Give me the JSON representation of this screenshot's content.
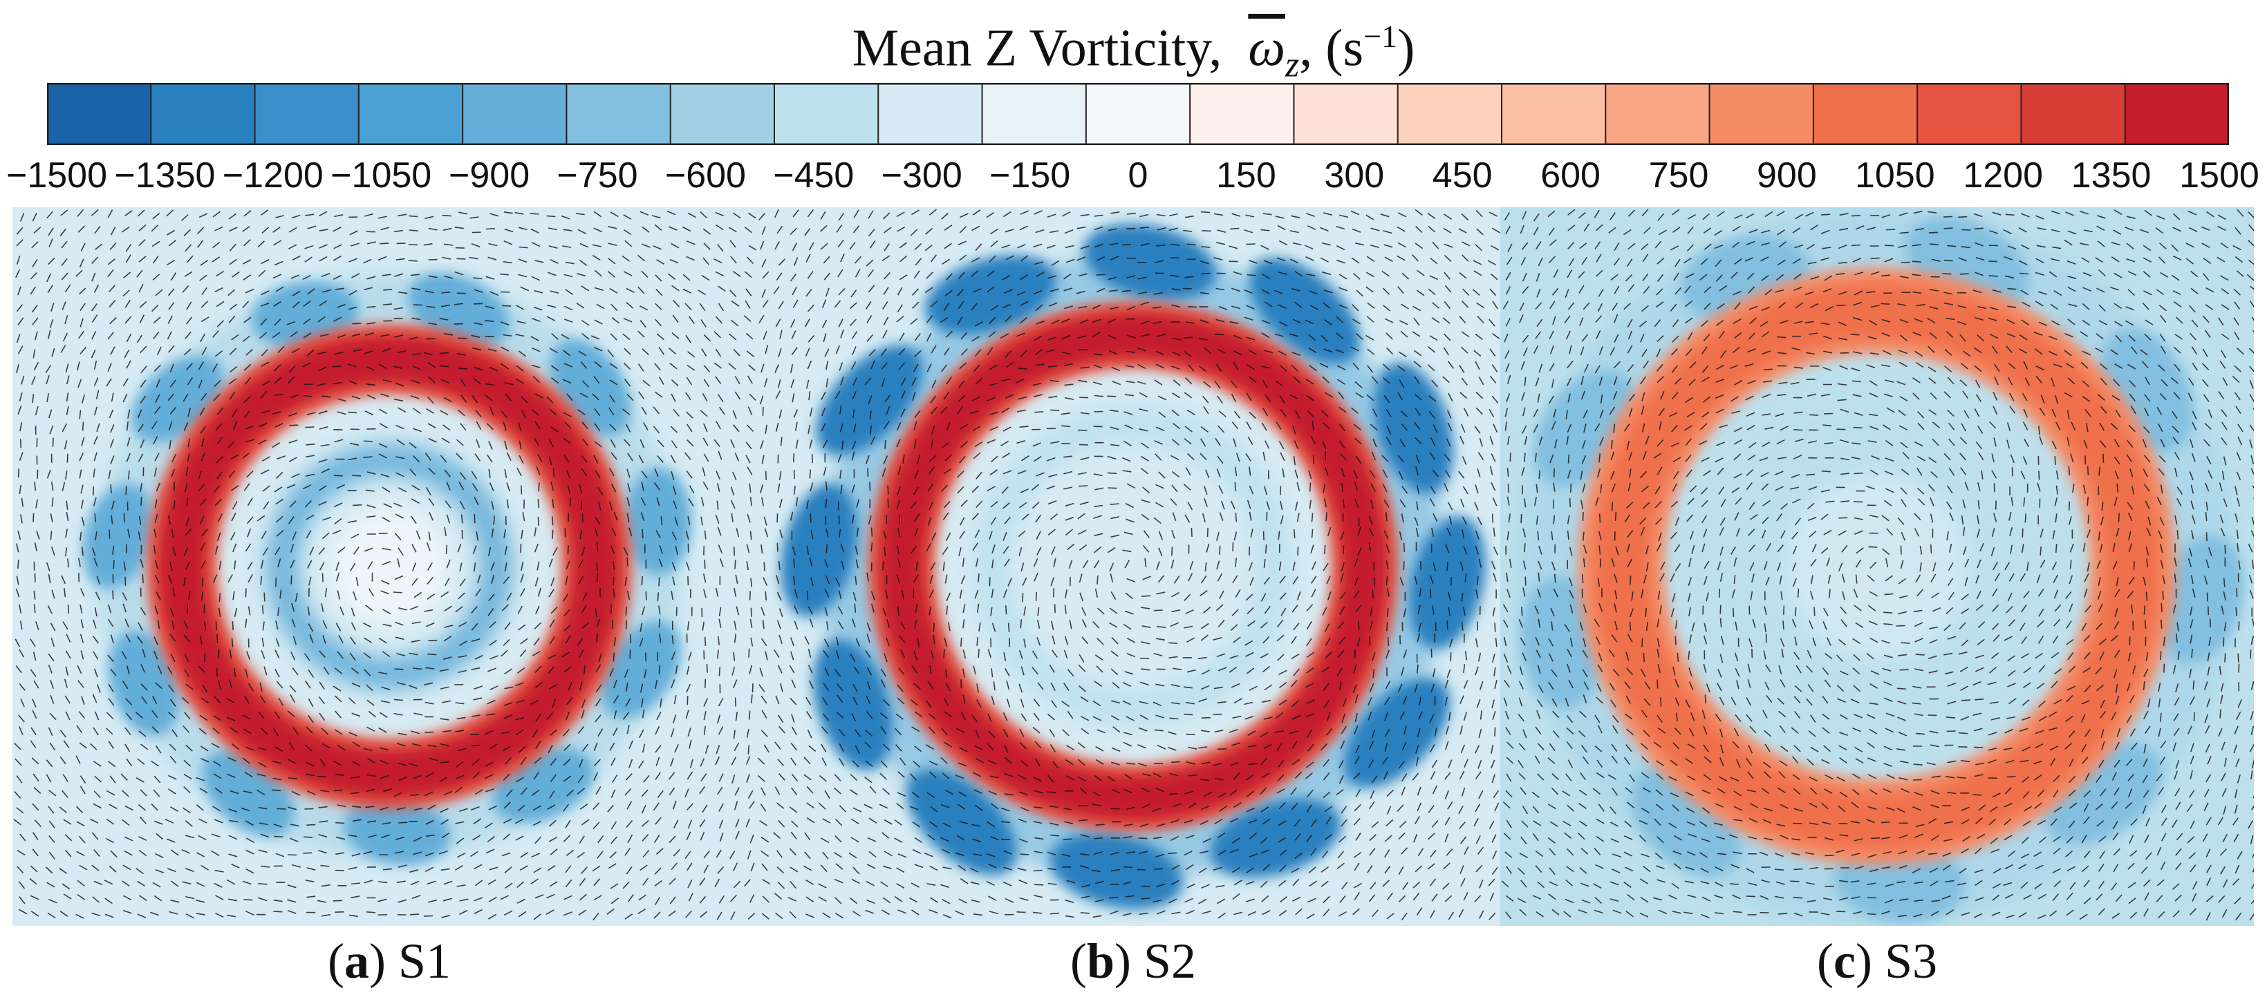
{
  "chart_data": {
    "type": "heatmap",
    "title": {
      "prefix": "Mean Z Vorticity,",
      "symbol": "ω",
      "subscript": "z",
      "unit_open": ",  (s",
      "unit_exp": "−1",
      "unit_close": ")"
    },
    "colorbar": {
      "ticks": [
        "−1500",
        "−1350",
        "−1200",
        "−1050",
        "−900",
        "−750",
        "−600",
        "−450",
        "−300",
        "−150",
        "0",
        "150",
        "300",
        "450",
        "600",
        "750",
        "900",
        "1050",
        "1200",
        "1350",
        "1500"
      ],
      "range": [
        -1500,
        1500
      ],
      "step": 150,
      "bin_colors": [
        "#1a63a8",
        "#2b80bf",
        "#3b8fcb",
        "#4ba1d4",
        "#64aed9",
        "#82bfe0",
        "#a2d1e6",
        "#bde0ed",
        "#d6ebf3",
        "#e8f3f8",
        "#f3f8fa",
        "#fdf0ec",
        "#fde1d5",
        "#fcd2be",
        "#fbbfa3",
        "#f8a583",
        "#f48c67",
        "#ef714c",
        "#e4533f",
        "#d83c37",
        "#c41e2d"
      ]
    },
    "panels": [
      {
        "letter": "a",
        "label": "S1",
        "ring_peak": 1450,
        "inner_ring": -800,
        "outer_blobs": -900,
        "background": -300
      },
      {
        "letter": "b",
        "label": "S2",
        "ring_peak": 1400,
        "inner_ring": -450,
        "outer_blobs": -1350,
        "background": -300
      },
      {
        "letter": "c",
        "label": "S3",
        "ring_peak": 1050,
        "inner_ring": -450,
        "outer_blobs": -700,
        "background": -450
      }
    ]
  }
}
